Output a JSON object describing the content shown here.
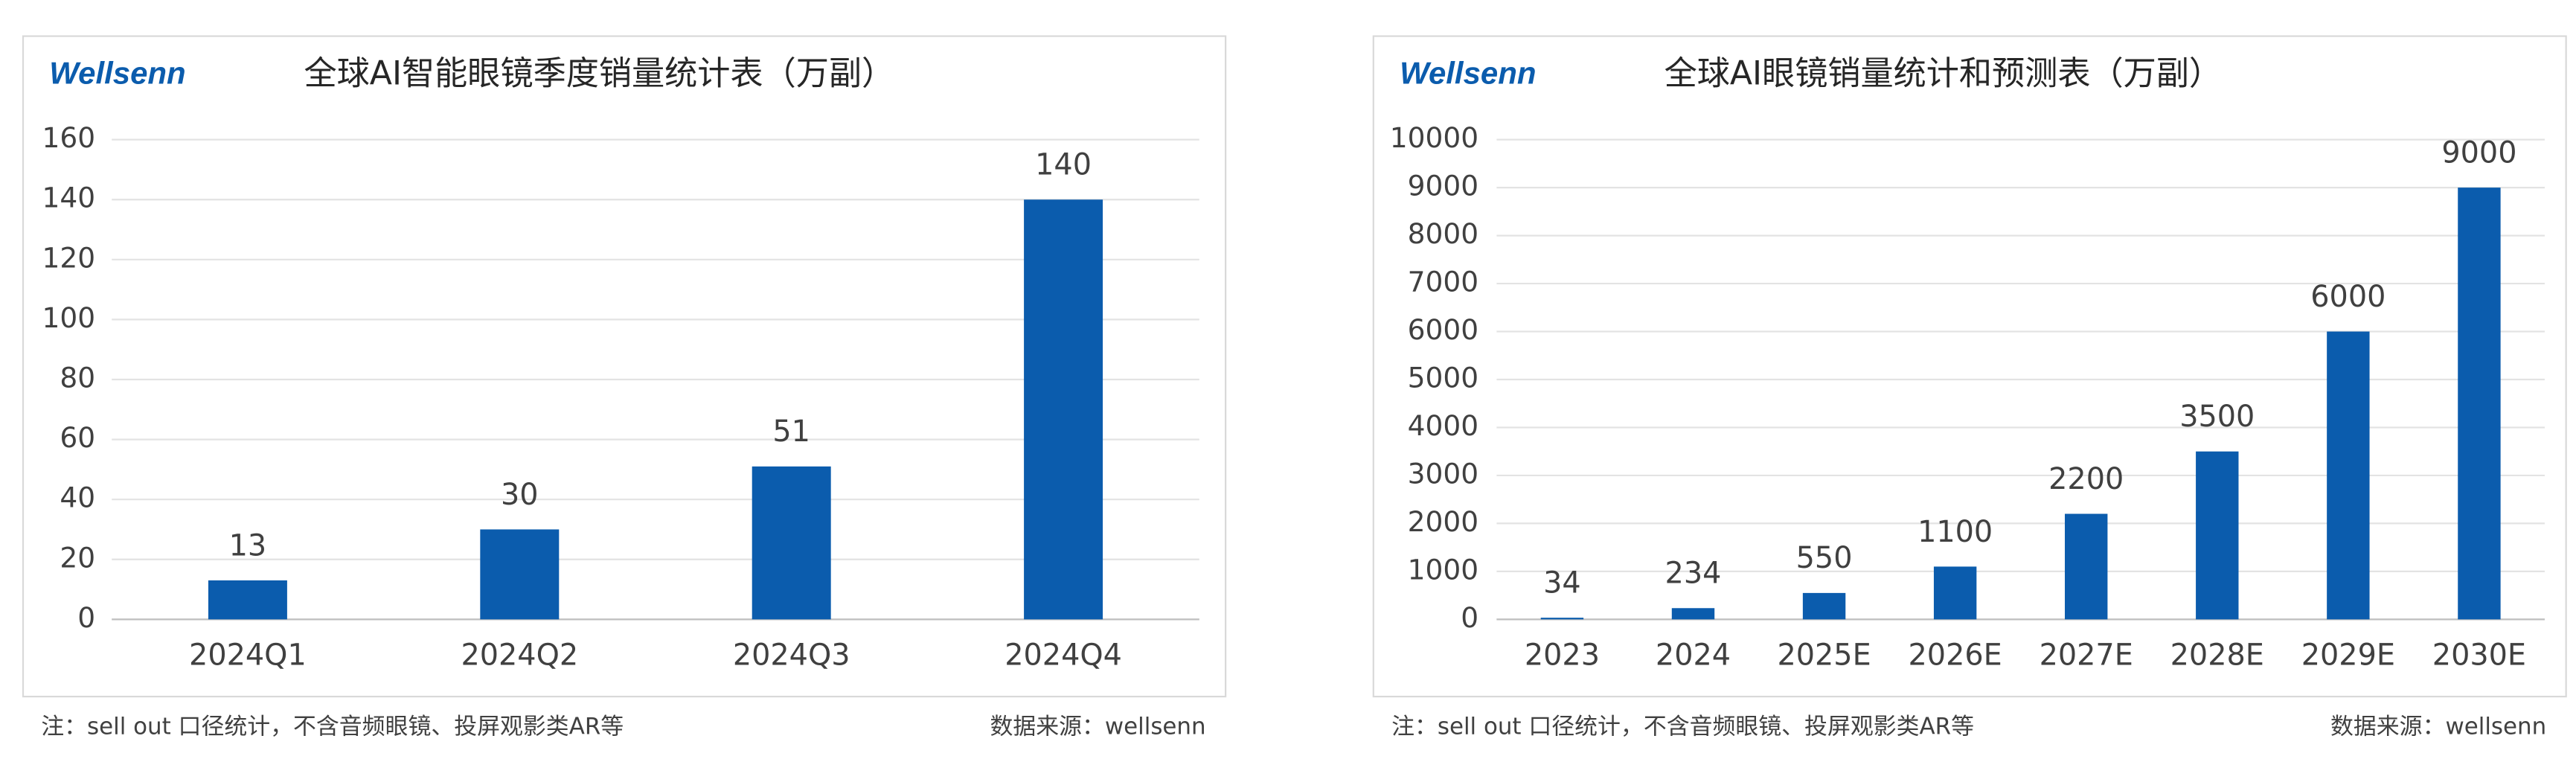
{
  "chart_data": [
    {
      "type": "bar",
      "logo": "Wellsenn",
      "title": "全球AI智能眼镜季度销量统计表（万副）",
      "categories": [
        "2024Q1",
        "2024Q2",
        "2024Q3",
        "2024Q4"
      ],
      "values": [
        13,
        30,
        51,
        140
      ],
      "color": "#0b5cad",
      "ylim": [
        0,
        160
      ],
      "yticks": [
        0,
        20,
        40,
        60,
        80,
        100,
        120,
        140,
        160
      ],
      "grid": true,
      "note": "注：sell out 口径统计，不含音频眼镜、投屏观影类AR等",
      "source": "数据来源：wellsenn"
    },
    {
      "type": "bar",
      "logo": "Wellsenn",
      "title": "全球AI眼镜销量统计和预测表（万副）",
      "categories": [
        "2023",
        "2024",
        "2025E",
        "2026E",
        "2027E",
        "2028E",
        "2029E",
        "2030E"
      ],
      "values": [
        34,
        234,
        550,
        1100,
        2200,
        3500,
        6000,
        9000
      ],
      "color": "#0b5cad",
      "ylim": [
        0,
        10000
      ],
      "yticks": [
        0,
        1000,
        2000,
        3000,
        4000,
        5000,
        6000,
        7000,
        8000,
        9000,
        10000
      ],
      "grid": true,
      "note": "注：sell out 口径统计，不含音频眼镜、投屏观影类AR等",
      "source": "数据来源：wellsenn"
    }
  ]
}
